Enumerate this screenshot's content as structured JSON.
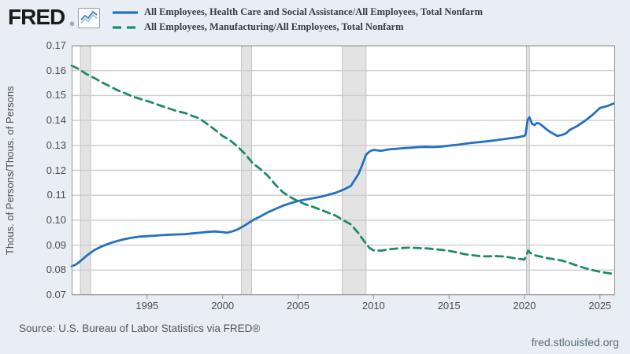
{
  "header": {
    "logo_text": "FRED",
    "registered_mark": "®"
  },
  "footer": {
    "source": "Source: U.S. Bureau of Labor Statistics via FRED®",
    "site": "fred.stlouisfed.org"
  },
  "chart_data": {
    "type": "line",
    "title": "",
    "xlabel": "",
    "ylabel": "Thous. of Persons/Thous. of Persons",
    "xlim": [
      1990,
      2026
    ],
    "ylim": [
      0.07,
      0.17
    ],
    "xticks": [
      1995,
      2000,
      2005,
      2010,
      2015,
      2020,
      2025
    ],
    "yticks": [
      0.07,
      0.08,
      0.09,
      0.1,
      0.11,
      0.12,
      0.13,
      0.14,
      0.15,
      0.16,
      0.17
    ],
    "grid": "horizontal",
    "legend_position": "top",
    "recessions": [
      [
        1990.58,
        1991.25
      ],
      [
        2001.25,
        2001.92
      ],
      [
        2007.92,
        2009.5
      ],
      [
        2020.13,
        2020.33
      ]
    ],
    "colors": {
      "background": "#e8eef4",
      "plot_bg": "#ffffff",
      "grid": "#cccccc",
      "axis": "#999999",
      "tick": "#8f8f8f",
      "recession_fill": "#e3e3e3",
      "recession_edge": "#c2c2c2",
      "healthcare_line": "#2470c2",
      "manufacturing_line": "#1d8a6d"
    },
    "series": [
      {
        "name": "All Employees, Health Care and Social Assistance/All Employees, Total Nonfarm",
        "color": "#2470c2",
        "style": "solid",
        "points": [
          [
            1990.0,
            0.0815
          ],
          [
            1990.25,
            0.0821
          ],
          [
            1990.5,
            0.0832
          ],
          [
            1990.75,
            0.0845
          ],
          [
            1991,
            0.0858
          ],
          [
            1991.5,
            0.088
          ],
          [
            1992,
            0.0895
          ],
          [
            1992.5,
            0.0907
          ],
          [
            1993,
            0.0916
          ],
          [
            1993.5,
            0.0924
          ],
          [
            1994,
            0.093
          ],
          [
            1994.5,
            0.0934
          ],
          [
            1995,
            0.0936
          ],
          [
            1995.5,
            0.0938
          ],
          [
            1996,
            0.094
          ],
          [
            1996.5,
            0.0942
          ],
          [
            1997,
            0.0943
          ],
          [
            1997.5,
            0.0944
          ],
          [
            1998,
            0.0947
          ],
          [
            1998.5,
            0.095
          ],
          [
            1999,
            0.0953
          ],
          [
            1999.5,
            0.0955
          ],
          [
            2000,
            0.0952
          ],
          [
            2000.3,
            0.095
          ],
          [
            2000.7,
            0.0956
          ],
          [
            2001,
            0.0963
          ],
          [
            2001.5,
            0.098
          ],
          [
            2002,
            0.1
          ],
          [
            2002.5,
            0.1015
          ],
          [
            2003,
            0.1032
          ],
          [
            2003.5,
            0.1045
          ],
          [
            2004,
            0.1058
          ],
          [
            2004.5,
            0.1068
          ],
          [
            2005,
            0.1077
          ],
          [
            2005.5,
            0.1083
          ],
          [
            2006,
            0.1088
          ],
          [
            2006.5,
            0.1094
          ],
          [
            2007,
            0.1102
          ],
          [
            2007.5,
            0.111
          ],
          [
            2008,
            0.1122
          ],
          [
            2008.5,
            0.1138
          ],
          [
            2009,
            0.1185
          ],
          [
            2009.25,
            0.1222
          ],
          [
            2009.5,
            0.1262
          ],
          [
            2009.75,
            0.1276
          ],
          [
            2010,
            0.1282
          ],
          [
            2010.5,
            0.1278
          ],
          [
            2011,
            0.1284
          ],
          [
            2011.5,
            0.1286
          ],
          [
            2012,
            0.1289
          ],
          [
            2012.5,
            0.1291
          ],
          [
            2013,
            0.1293
          ],
          [
            2013.5,
            0.1294
          ],
          [
            2014,
            0.1293
          ],
          [
            2014.5,
            0.1295
          ],
          [
            2015,
            0.1299
          ],
          [
            2015.5,
            0.1302
          ],
          [
            2016,
            0.1306
          ],
          [
            2016.5,
            0.131
          ],
          [
            2017,
            0.1313
          ],
          [
            2017.5,
            0.1316
          ],
          [
            2018,
            0.132
          ],
          [
            2018.5,
            0.1324
          ],
          [
            2019,
            0.1328
          ],
          [
            2019.5,
            0.1332
          ],
          [
            2020,
            0.1338
          ],
          [
            2020.08,
            0.1345
          ],
          [
            2020.21,
            0.1402
          ],
          [
            2020.33,
            0.1413
          ],
          [
            2020.42,
            0.1398
          ],
          [
            2020.5,
            0.1386
          ],
          [
            2020.67,
            0.1382
          ],
          [
            2020.83,
            0.139
          ],
          [
            2021,
            0.1387
          ],
          [
            2021.25,
            0.1375
          ],
          [
            2021.5,
            0.1362
          ],
          [
            2021.75,
            0.1352
          ],
          [
            2022,
            0.1344
          ],
          [
            2022.17,
            0.1338
          ],
          [
            2022.5,
            0.1342
          ],
          [
            2022.75,
            0.1348
          ],
          [
            2023,
            0.1362
          ],
          [
            2023.5,
            0.1378
          ],
          [
            2024,
            0.1398
          ],
          [
            2024.5,
            0.1422
          ],
          [
            2025,
            0.145
          ],
          [
            2025.5,
            0.1458
          ],
          [
            2025.92,
            0.1468
          ]
        ]
      },
      {
        "name": "All Employees, Manufacturing/All Employees, Total Nonfarm",
        "color": "#1d8a6d",
        "style": "dashed",
        "points": [
          [
            1990.0,
            0.162
          ],
          [
            1990.5,
            0.1605
          ],
          [
            1991,
            0.1585
          ],
          [
            1991.5,
            0.157
          ],
          [
            1992,
            0.1553
          ],
          [
            1992.5,
            0.1538
          ],
          [
            1993,
            0.1522
          ],
          [
            1993.5,
            0.151
          ],
          [
            1994,
            0.1497
          ],
          [
            1994.5,
            0.1487
          ],
          [
            1995,
            0.1478
          ],
          [
            1995.5,
            0.1468
          ],
          [
            1996,
            0.1457
          ],
          [
            1996.5,
            0.1447
          ],
          [
            1997,
            0.1437
          ],
          [
            1997.5,
            0.143
          ],
          [
            1998,
            0.1418
          ],
          [
            1998.3,
            0.1412
          ],
          [
            1998.7,
            0.1398
          ],
          [
            1999,
            0.1385
          ],
          [
            1999.5,
            0.1362
          ],
          [
            2000,
            0.1338
          ],
          [
            2000.5,
            0.132
          ],
          [
            2001,
            0.1295
          ],
          [
            2001.5,
            0.1265
          ],
          [
            2002,
            0.1228
          ],
          [
            2002.5,
            0.1205
          ],
          [
            2003,
            0.1178
          ],
          [
            2003.5,
            0.1142
          ],
          [
            2004,
            0.1112
          ],
          [
            2004.5,
            0.1092
          ],
          [
            2005,
            0.1076
          ],
          [
            2005.5,
            0.1063
          ],
          [
            2006,
            0.1053
          ],
          [
            2006.5,
            0.1042
          ],
          [
            2007,
            0.103
          ],
          [
            2007.5,
            0.1018
          ],
          [
            2008,
            0.1
          ],
          [
            2008.5,
            0.0983
          ],
          [
            2009,
            0.0948
          ],
          [
            2009.5,
            0.0905
          ],
          [
            2009.75,
            0.0888
          ],
          [
            2010,
            0.0879
          ],
          [
            2010.5,
            0.0878
          ],
          [
            2011,
            0.0883
          ],
          [
            2011.5,
            0.0886
          ],
          [
            2012,
            0.0889
          ],
          [
            2012.5,
            0.089
          ],
          [
            2013,
            0.0888
          ],
          [
            2013.5,
            0.0887
          ],
          [
            2014,
            0.0884
          ],
          [
            2014.5,
            0.0881
          ],
          [
            2015,
            0.0877
          ],
          [
            2015.5,
            0.0871
          ],
          [
            2016,
            0.0864
          ],
          [
            2016.5,
            0.086
          ],
          [
            2017,
            0.0856
          ],
          [
            2017.5,
            0.0855
          ],
          [
            2018,
            0.0856
          ],
          [
            2018.5,
            0.0855
          ],
          [
            2019,
            0.0851
          ],
          [
            2019.5,
            0.0846
          ],
          [
            2020,
            0.0842
          ],
          [
            2020.25,
            0.0878
          ],
          [
            2020.4,
            0.0868
          ],
          [
            2020.75,
            0.0858
          ],
          [
            2021,
            0.0855
          ],
          [
            2021.5,
            0.0848
          ],
          [
            2022,
            0.0843
          ],
          [
            2022.5,
            0.0838
          ],
          [
            2023,
            0.0828
          ],
          [
            2023.5,
            0.0818
          ],
          [
            2024,
            0.0808
          ],
          [
            2024.5,
            0.08
          ],
          [
            2025,
            0.0793
          ],
          [
            2025.92,
            0.0784
          ]
        ]
      }
    ]
  }
}
